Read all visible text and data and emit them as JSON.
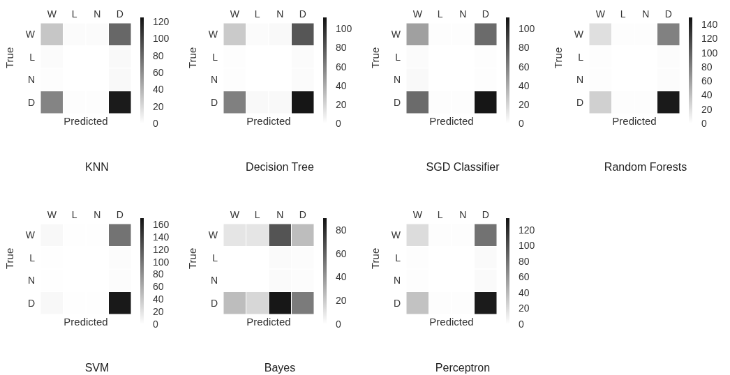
{
  "chart_data": [
    {
      "type": "heatmap",
      "title": "KNN",
      "xlabel": "Predicted",
      "ylabel": "True",
      "categories": [
        "W",
        "L",
        "N",
        "D"
      ],
      "y_categories": [
        "W",
        "L",
        "N",
        "D"
      ],
      "cells": [
        [
          30,
          2,
          2,
          80
        ],
        [
          2,
          0,
          0,
          3
        ],
        [
          1,
          0,
          0,
          3
        ],
        [
          65,
          1,
          1,
          120
        ]
      ],
      "clim": [
        0,
        125
      ],
      "cticks": [
        0,
        20,
        40,
        60,
        80,
        100,
        120
      ]
    },
    {
      "type": "heatmap",
      "title": "Decision Tree",
      "xlabel": "Predicted",
      "ylabel": "True",
      "categories": [
        "W",
        "L",
        "N",
        "D"
      ],
      "y_categories": [
        "W",
        "L",
        "N",
        "D"
      ],
      "cells": [
        [
          25,
          2,
          3,
          80
        ],
        [
          1,
          0,
          0,
          2
        ],
        [
          1,
          0,
          0,
          2
        ],
        [
          60,
          3,
          3,
          110
        ]
      ],
      "clim": [
        0,
        112
      ],
      "cticks": [
        0,
        20,
        40,
        60,
        80,
        100
      ]
    },
    {
      "type": "heatmap",
      "title": "SGD Classifier",
      "xlabel": "Predicted",
      "ylabel": "True",
      "categories": [
        "W",
        "L",
        "N",
        "D"
      ],
      "y_categories": [
        "W",
        "L",
        "N",
        "D"
      ],
      "cells": [
        [
          45,
          1,
          1,
          70
        ],
        [
          2,
          0,
          0,
          1
        ],
        [
          3,
          0,
          0,
          1
        ],
        [
          70,
          1,
          1,
          110
        ]
      ],
      "clim": [
        0,
        112
      ],
      "cticks": [
        0,
        20,
        40,
        60,
        80,
        100
      ]
    },
    {
      "type": "heatmap",
      "title": "Random Forests",
      "xlabel": "Predicted",
      "ylabel": "True",
      "categories": [
        "W",
        "L",
        "N",
        "D"
      ],
      "y_categories": [
        "W",
        "L",
        "N",
        "D"
      ],
      "cells": [
        [
          20,
          1,
          1,
          80
        ],
        [
          1,
          0,
          0,
          2
        ],
        [
          1,
          0,
          0,
          2
        ],
        [
          30,
          1,
          1,
          145
        ]
      ],
      "clim": [
        0,
        150
      ],
      "cticks": [
        0,
        20,
        40,
        60,
        80,
        100,
        120,
        140
      ]
    },
    {
      "type": "heatmap",
      "title": "SVM",
      "xlabel": "Predicted",
      "ylabel": "True",
      "categories": [
        "W",
        "L",
        "N",
        "D"
      ],
      "y_categories": [
        "W",
        "L",
        "N",
        "D"
      ],
      "cells": [
        [
          5,
          1,
          1,
          100
        ],
        [
          1,
          0,
          0,
          2
        ],
        [
          1,
          0,
          0,
          2
        ],
        [
          5,
          1,
          1,
          165
        ]
      ],
      "clim": [
        0,
        170
      ],
      "cticks": [
        0,
        20,
        40,
        60,
        80,
        100,
        120,
        140,
        160
      ]
    },
    {
      "type": "heatmap",
      "title": "Bayes",
      "xlabel": "Predicted",
      "ylabel": "True",
      "categories": [
        "W",
        "L",
        "N",
        "D"
      ],
      "y_categories": [
        "W",
        "L",
        "N",
        "D"
      ],
      "cells": [
        [
          10,
          10,
          65,
          25
        ],
        [
          0,
          0,
          2,
          1
        ],
        [
          0,
          0,
          2,
          1
        ],
        [
          25,
          15,
          88,
          50
        ]
      ],
      "clim": [
        0,
        90
      ],
      "cticks": [
        0,
        20,
        40,
        60,
        80
      ]
    },
    {
      "type": "heatmap",
      "title": "Perceptron",
      "xlabel": "Predicted",
      "ylabel": "True",
      "categories": [
        "W",
        "L",
        "N",
        "D"
      ],
      "y_categories": [
        "W",
        "L",
        "N",
        "D"
      ],
      "cells": [
        [
          20,
          1,
          1,
          80
        ],
        [
          1,
          0,
          0,
          3
        ],
        [
          1,
          0,
          0,
          3
        ],
        [
          35,
          1,
          1,
          130
        ]
      ],
      "clim": [
        0,
        135
      ],
      "cticks": [
        0,
        20,
        40,
        60,
        80,
        100,
        120
      ]
    }
  ]
}
